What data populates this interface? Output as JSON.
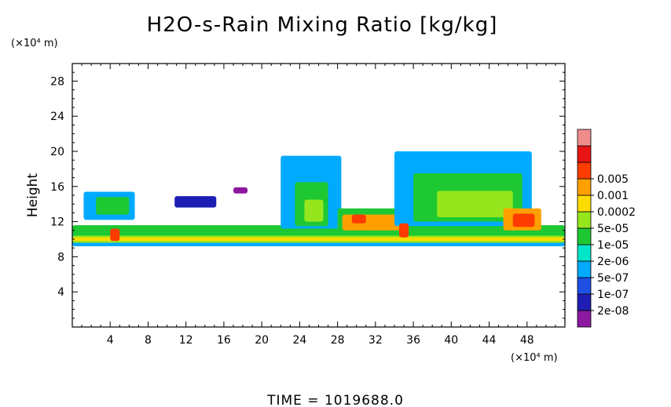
{
  "chart_data": {
    "type": "heatmap",
    "title": "H2O-s-Rain Mixing Ratio [kg/kg]",
    "ylabel": "Height",
    "x_unit": "(×10⁴ m)",
    "y_unit": "(×10⁴ m)",
    "xlim": [
      0,
      52
    ],
    "ylim": [
      0,
      30
    ],
    "x_ticks": [
      4,
      8,
      12,
      16,
      20,
      24,
      28,
      32,
      36,
      40,
      44,
      48
    ],
    "y_ticks": [
      4,
      8,
      12,
      16,
      20,
      24,
      28
    ],
    "footer": "TIME  =  1019688.0",
    "colorbar": {
      "colors": [
        "#8c19a0",
        "#1e1eb4",
        "#1e50e6",
        "#00aaff",
        "#00e6c8",
        "#1ec832",
        "#96e61e",
        "#ffdc00",
        "#ffa000",
        "#ff3c00",
        "#e61414",
        "#f08c8c"
      ],
      "labels": [
        "2e-08",
        "1e-07",
        "5e-07",
        "2e-06",
        "1e-05",
        "5e-05",
        "0.0002",
        "0.001",
        "0.005"
      ]
    },
    "regions": [
      {
        "name": "lower-layer-base",
        "x": [
          0,
          52
        ],
        "y": [
          9.2,
          10.6
        ],
        "level": 3
      },
      {
        "name": "lower-layer-mid",
        "x": [
          0,
          52
        ],
        "y": [
          9.6,
          10.4
        ],
        "level": 6
      },
      {
        "name": "lower-layer-core",
        "x": [
          0,
          52
        ],
        "y": [
          9.8,
          10.2
        ],
        "level": 7
      },
      {
        "name": "layer-tops",
        "x": [
          0,
          52
        ],
        "y": [
          10.4,
          11.6
        ],
        "level": 5
      },
      {
        "name": "cloud-left",
        "x": [
          1.2,
          6.6
        ],
        "y": [
          12.2,
          15.4
        ],
        "level": 3
      },
      {
        "name": "cloud-left-core",
        "x": [
          2.5,
          6.0
        ],
        "y": [
          12.8,
          14.8
        ],
        "level": 5
      },
      {
        "name": "cloud-thin",
        "x": [
          10.8,
          15.2
        ],
        "y": [
          13.6,
          14.9
        ],
        "level": 1
      },
      {
        "name": "cloud-small",
        "x": [
          17.0,
          18.5
        ],
        "y": [
          15.2,
          15.9
        ],
        "level": 0
      },
      {
        "name": "cloud-22-28",
        "x": [
          22.0,
          28.4
        ],
        "y": [
          11.2,
          19.5
        ],
        "level": 3
      },
      {
        "name": "cloud-22-28-core",
        "x": [
          23.5,
          27.0
        ],
        "y": [
          11.5,
          16.5
        ],
        "level": 5
      },
      {
        "name": "cloud-22-28-inner",
        "x": [
          24.5,
          26.5
        ],
        "y": [
          12.0,
          14.5
        ],
        "level": 6
      },
      {
        "name": "band-28-36",
        "x": [
          28.0,
          36.0
        ],
        "y": [
          10.6,
          13.5
        ],
        "level": 5
      },
      {
        "name": "band-28-36-core",
        "x": [
          28.5,
          35.5
        ],
        "y": [
          11.0,
          12.8
        ],
        "level": 8
      },
      {
        "name": "band-28-36-hot",
        "x": [
          29.5,
          31.0
        ],
        "y": [
          11.8,
          12.8
        ],
        "level": 9
      },
      {
        "name": "cloud-36-48",
        "x": [
          34.0,
          48.5
        ],
        "y": [
          11.5,
          20.0
        ],
        "level": 3
      },
      {
        "name": "cloud-36-48-core",
        "x": [
          36.0,
          47.5
        ],
        "y": [
          12.0,
          17.5
        ],
        "level": 5
      },
      {
        "name": "cloud-36-48-inner",
        "x": [
          38.5,
          46.5
        ],
        "y": [
          12.5,
          15.5
        ],
        "level": 6
      },
      {
        "name": "cell-46-48",
        "x": [
          45.5,
          49.5
        ],
        "y": [
          11.0,
          13.5
        ],
        "level": 8
      },
      {
        "name": "cell-46-48-hot",
        "x": [
          46.5,
          48.8
        ],
        "y": [
          11.4,
          12.9
        ],
        "level": 9
      },
      {
        "name": "cell-4",
        "x": [
          4.0,
          5.0
        ],
        "y": [
          9.8,
          11.2
        ],
        "level": 9
      },
      {
        "name": "cell-35",
        "x": [
          34.5,
          35.5
        ],
        "y": [
          10.2,
          11.8
        ],
        "level": 9
      }
    ]
  }
}
